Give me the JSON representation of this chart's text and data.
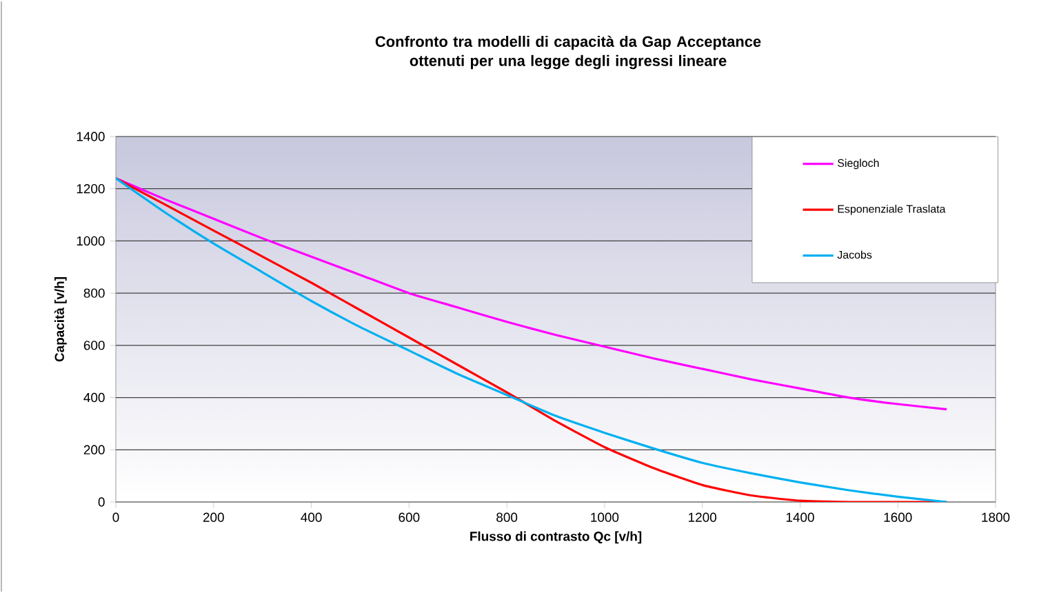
{
  "chart_data": {
    "type": "line",
    "title": "Confronto tra modelli di capacità da Gap Acceptance ottenuti per una legge degli ingressi lineare",
    "xlabel": "Flusso di contrasto Qc [v/h]",
    "ylabel": "Capacità [v/h]",
    "x": [
      0,
      100,
      200,
      300,
      400,
      500,
      600,
      700,
      800,
      900,
      1000,
      1100,
      1200,
      1300,
      1400,
      1500,
      1600,
      1700
    ],
    "series": [
      {
        "name": "Siegloch",
        "color": "#ff00ff",
        "values": [
          1240,
          1160,
          1085,
          1010,
          940,
          870,
          800,
          745,
          690,
          640,
          595,
          550,
          510,
          470,
          435,
          400,
          375,
          355
        ]
      },
      {
        "name": "Esponenziale Traslata",
        "color": "#ff0000",
        "values": [
          1240,
          1140,
          1040,
          940,
          840,
          735,
          630,
          525,
          420,
          310,
          210,
          130,
          65,
          25,
          5,
          0,
          0,
          0
        ]
      },
      {
        "name": "Jacobs",
        "color": "#00b0f0",
        "values": [
          1240,
          1110,
          990,
          880,
          770,
          670,
          580,
          490,
          410,
          330,
          265,
          205,
          150,
          110,
          75,
          45,
          20,
          0
        ]
      }
    ],
    "xlim": [
      0,
      1800
    ],
    "ylim": [
      0,
      1400
    ],
    "xticks": [
      0,
      200,
      400,
      600,
      800,
      1000,
      1200,
      1400,
      1600,
      1800
    ],
    "yticks": [
      0,
      200,
      400,
      600,
      800,
      1000,
      1200,
      1400
    ],
    "grid": "y",
    "legend": "top right",
    "marker": "none",
    "line_style": "solid"
  }
}
